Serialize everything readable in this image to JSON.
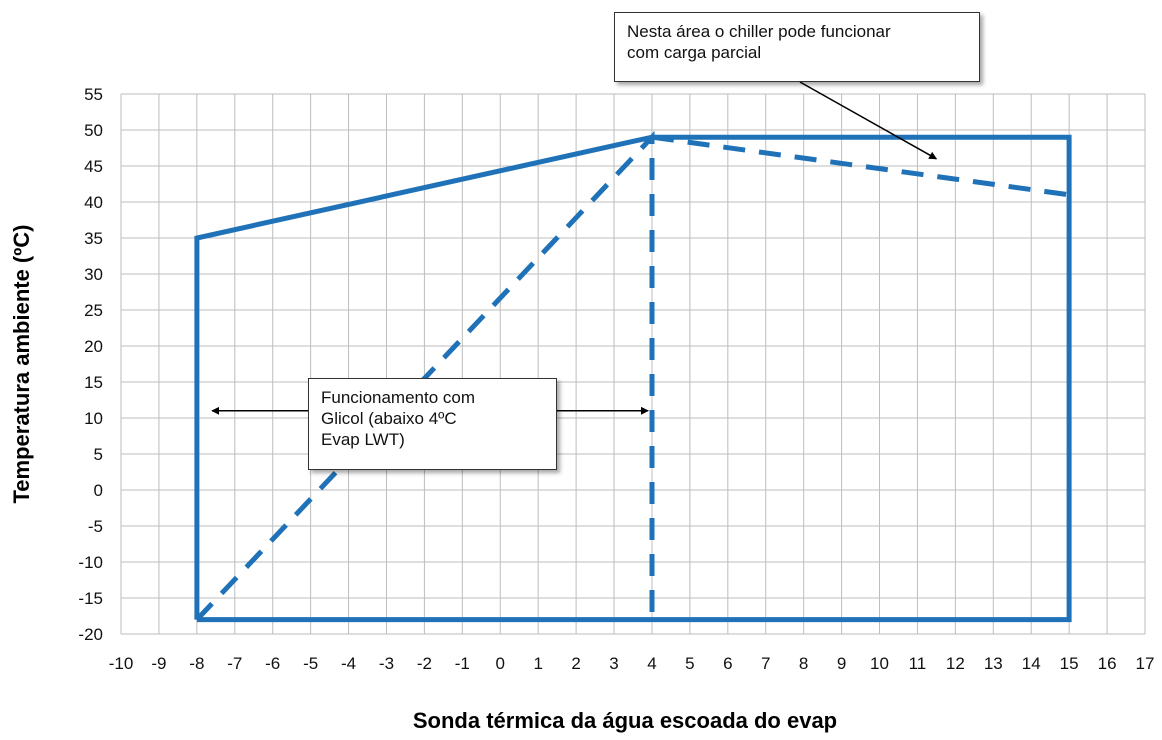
{
  "chart_data": {
    "type": "line",
    "title": "",
    "xlabel": "Sonda térmica da água escoada do evap",
    "ylabel": "Temperatura ambiente (ºC)",
    "xlim": [
      -10,
      17
    ],
    "ylim": [
      -20,
      55
    ],
    "x_ticks": [
      "-10",
      "-9",
      "-8",
      "-7",
      "-6",
      "-5",
      "-4",
      "-3",
      "-2",
      "-1",
      "0",
      "1",
      "2",
      "3",
      "4",
      "5",
      "6",
      "7",
      "8",
      "9",
      "10",
      "11",
      "12",
      "13",
      "14",
      "15",
      "16",
      "17"
    ],
    "y_ticks": [
      "55",
      "50",
      "45",
      "40",
      "35",
      "30",
      "25",
      "20",
      "15",
      "10",
      "5",
      "0",
      "-5",
      "-10",
      "-15",
      "-20"
    ],
    "grid": true,
    "series": [
      {
        "style": "solid",
        "color": "#1f72b8",
        "x": [
          -8,
          -8,
          4,
          15,
          15,
          -8
        ],
        "y": [
          -18,
          35,
          49,
          49,
          -18,
          -18
        ]
      },
      {
        "style": "dashed",
        "color": "#1f72b8",
        "x": [
          -8,
          4,
          4
        ],
        "y": [
          -18,
          49,
          -18
        ]
      },
      {
        "style": "dashed",
        "color": "#1f72b8",
        "x": [
          4,
          15
        ],
        "y": [
          49,
          41
        ]
      }
    ],
    "annotations": [
      {
        "lines": [
          "Nesta área o chiller pode funcionar",
          "com carga parcial"
        ],
        "arrow_to": [
          11.5,
          46
        ]
      },
      {
        "lines": [
          "Funcionamento  com",
          "Glicol  (abaixo  4ºC",
          "Evap LWT)"
        ],
        "arrows_to": [
          [
            -7.6,
            11
          ],
          [
            3.9,
            11
          ]
        ]
      }
    ]
  }
}
